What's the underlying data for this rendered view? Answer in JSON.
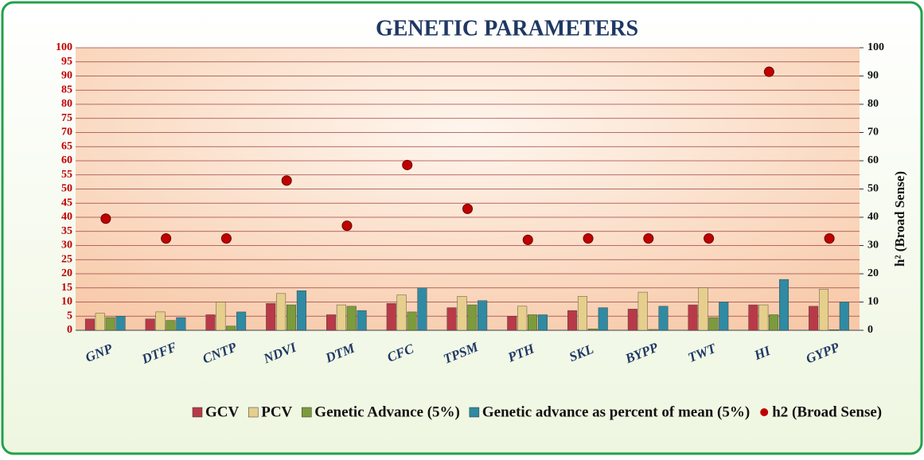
{
  "chart_data": {
    "type": "bar",
    "title": "GENETIC PARAMETERS",
    "y2label": "h² (Broad Sense)",
    "categories": [
      "GNP",
      "DTFF",
      "CNTP",
      "NDVI",
      "DTM",
      "CFC",
      "TPSM",
      "PTH",
      "SKL",
      "BYPP",
      "TWT",
      "HI",
      "GYPP"
    ],
    "series": [
      {
        "name": "GCV",
        "color": "#b83a48",
        "values": [
          4,
          4,
          5.5,
          9.5,
          5.5,
          9.5,
          8,
          5,
          7,
          7.5,
          9,
          9,
          8.5
        ]
      },
      {
        "name": "PCV",
        "color": "#e6cf8c",
        "values": [
          6,
          6.5,
          10,
          13,
          9,
          12.5,
          12,
          8.5,
          12,
          13.5,
          15,
          9,
          14.5
        ]
      },
      {
        "name": "Genetic Advance (5%)",
        "color": "#7b9b3c",
        "values": [
          4.5,
          3.5,
          1.5,
          9,
          8.5,
          6.5,
          9,
          5.5,
          0.5,
          0.3,
          4.5,
          5.5,
          0.2
        ]
      },
      {
        "name": "Genetic advance as percent  of mean (5%)",
        "color": "#2f8aa2",
        "values": [
          5,
          4.5,
          6.5,
          14,
          7,
          15,
          10.5,
          5.5,
          8,
          8.5,
          10,
          18,
          10
        ]
      },
      {
        "name": "h2 (Broad Sense)",
        "color": "#c00000",
        "axis": "y2",
        "values": [
          39.5,
          32.5,
          32.5,
          53,
          37,
          58.5,
          43,
          32,
          32.5,
          32.5,
          32.5,
          91.5,
          32.5
        ]
      }
    ],
    "ylim": [
      0,
      100
    ],
    "yticks": [
      0,
      5,
      10,
      15,
      20,
      25,
      30,
      35,
      40,
      45,
      50,
      55,
      60,
      65,
      70,
      75,
      80,
      85,
      90,
      95,
      100
    ],
    "y2lim": [
      0,
      100
    ],
    "y2ticks": [
      0,
      10,
      20,
      30,
      40,
      50,
      60,
      70,
      80,
      90,
      100
    ],
    "grid": true,
    "legend": "bottom"
  }
}
